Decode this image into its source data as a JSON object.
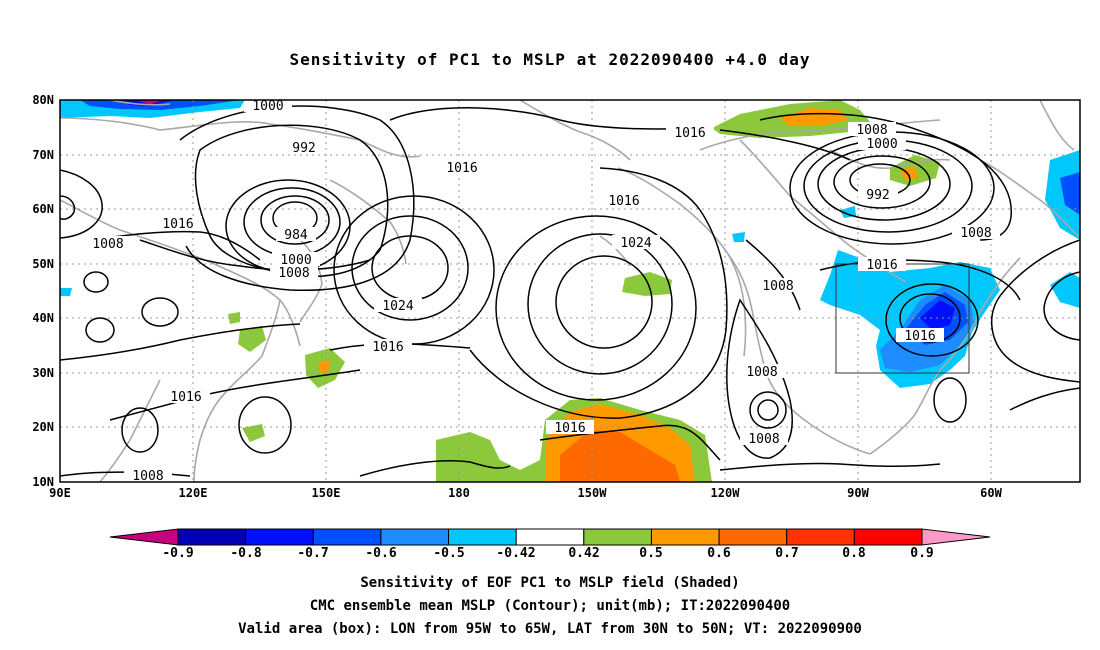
{
  "title": "Sensitivity of PC1 to MSLP at 2022090400 +4.0 day",
  "lat_labels": [
    "80N",
    "70N",
    "60N",
    "50N",
    "40N",
    "30N",
    "20N",
    "10N"
  ],
  "lon_labels": [
    "90E",
    "120E",
    "150E",
    "180",
    "150W",
    "120W",
    "90W",
    "60W"
  ],
  "contour_labels": [
    {
      "text": "1000"
    },
    {
      "text": "992"
    },
    {
      "text": "1016"
    },
    {
      "text": "1016"
    },
    {
      "text": "1016"
    },
    {
      "text": "1008"
    },
    {
      "text": "1000"
    },
    {
      "text": "1016"
    },
    {
      "text": "1008"
    },
    {
      "text": "984"
    },
    {
      "text": "1000"
    },
    {
      "text": "1008"
    },
    {
      "text": "1024"
    },
    {
      "text": "1016"
    },
    {
      "text": "1024"
    },
    {
      "text": "992"
    },
    {
      "text": "1008"
    },
    {
      "text": "1016"
    },
    {
      "text": "1008"
    },
    {
      "text": "1016"
    },
    {
      "text": "1008"
    },
    {
      "text": "1016"
    },
    {
      "text": "1008"
    },
    {
      "text": "1008"
    },
    {
      "text": "1016"
    }
  ],
  "colorbar": {
    "labels": [
      "-0.9",
      "-0.8",
      "-0.7",
      "-0.6",
      "-0.5",
      "-0.42",
      "0.42",
      "0.5",
      "0.6",
      "0.7",
      "0.8",
      "0.9"
    ],
    "colors": [
      "#0000b4",
      "#0010ff",
      "#0050ff",
      "#1e8cff",
      "#00c8ff",
      "#ffffff",
      "#8cc83c",
      "#ff9900",
      "#ff6a00",
      "#ff3200",
      "#ff0000"
    ],
    "low_end_color": "#c8007d",
    "high_end_color": "#ff9ac8"
  },
  "captions": [
    "Sensitivity of EOF PC1 to MSLP field (Shaded)",
    "CMC ensemble mean MSLP (Contour); unit(mb); IT:2022090400",
    "Valid area (box): LON from 95W to 65W, LAT from 30N to 50N; VT: 2022090900"
  ],
  "valid_area": {
    "lon_min": -95,
    "lon_max": -65,
    "lat_min": 30,
    "lat_max": 50
  }
}
